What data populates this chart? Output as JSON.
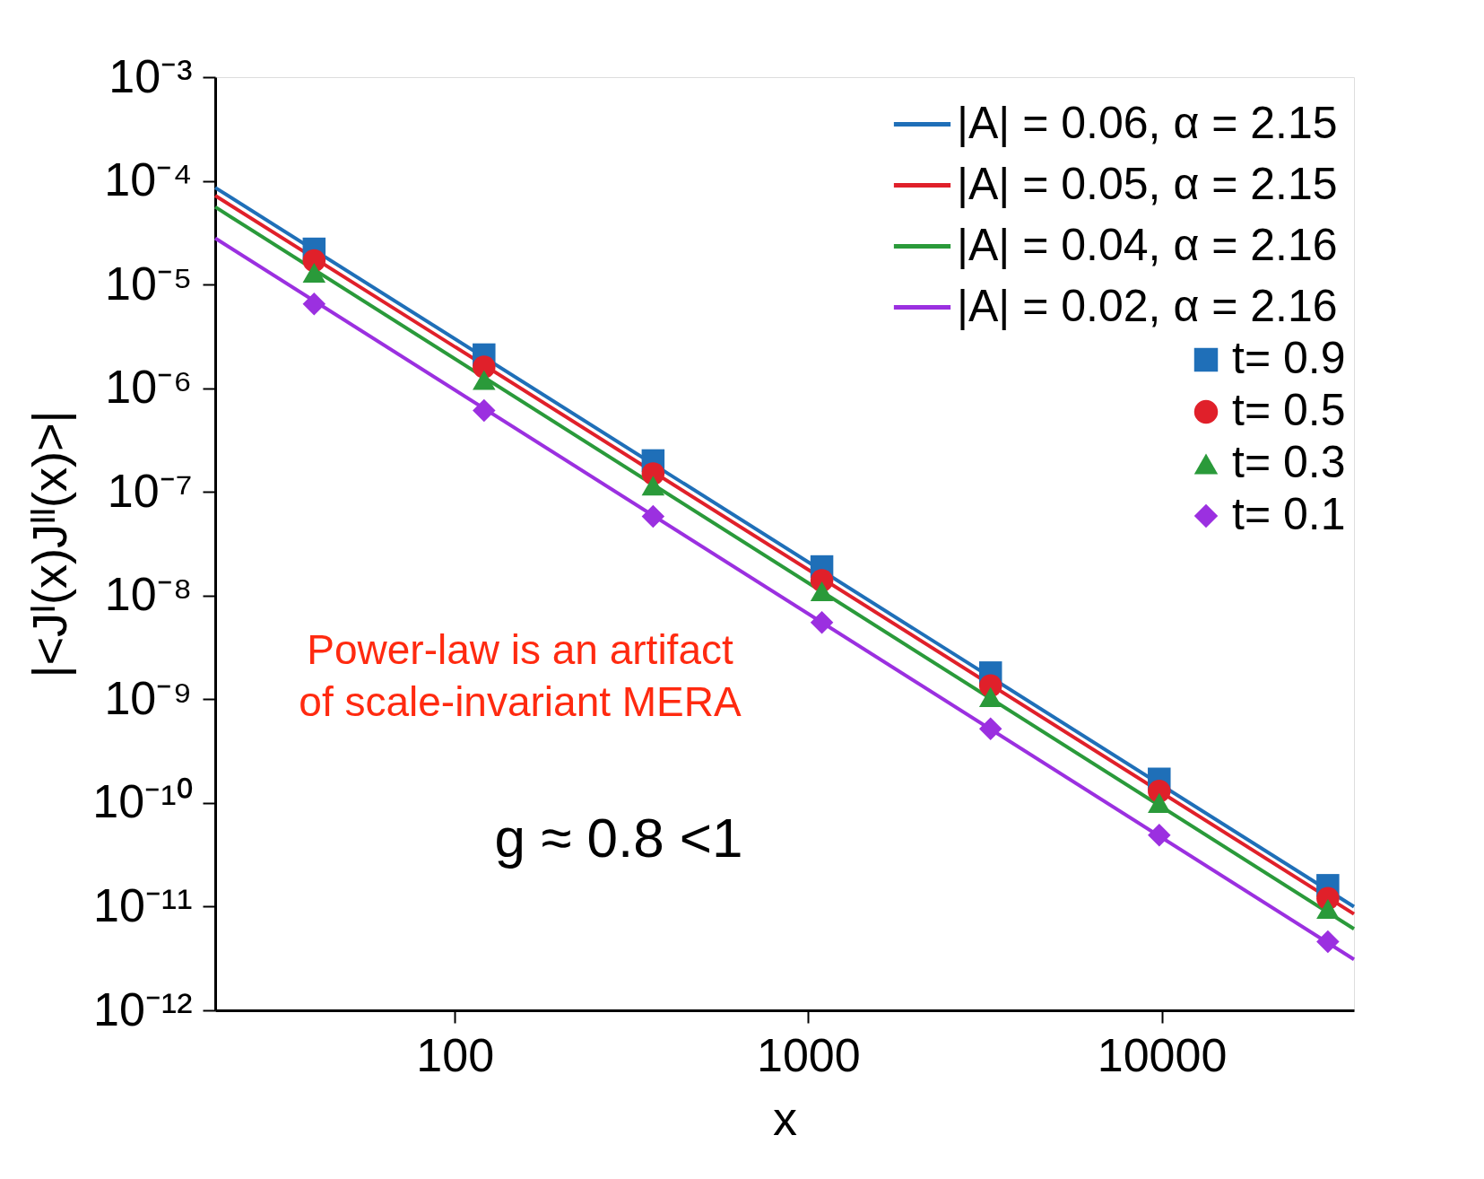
{
  "chart_data": {
    "type": "line",
    "xlabel": "x",
    "ylabel": "|<Jᴵ(x)Jᴵᴵ(x)>|",
    "log": "xy",
    "grid": false,
    "legend": "top right",
    "xlim": [
      21,
      35000
    ],
    "xticks": [
      100,
      1000,
      10000
    ],
    "ylim": [
      1e-12,
      0.001
    ],
    "yticks": [
      {
        "value": 1e-12,
        "label": "10⁻¹²"
      },
      {
        "value": 1e-11,
        "label": "10⁻¹¹"
      },
      {
        "value": 1e-10,
        "label": "10⁻¹⁰"
      },
      {
        "value": 1e-09,
        "label": "10⁻⁹"
      },
      {
        "value": 1e-08,
        "label": "10⁻⁸"
      },
      {
        "value": 1e-07,
        "label": "10⁻⁷"
      },
      {
        "value": 1e-06,
        "label": "10⁻⁶"
      },
      {
        "value": 1e-05,
        "label": "10⁻⁵"
      },
      {
        "value": 0.0001,
        "label": "10⁻⁴"
      },
      {
        "value": 0.001,
        "label": "10⁻³"
      }
    ],
    "annotations": [
      "Power-law is an artifact\nof scale-invariant MERA",
      "g ≈ 0.8 <1"
    ],
    "series": [
      {
        "name": "|A| = 0.06, α = 2.15",
        "color": "#1f6fb8",
        "x": [
          21,
          35000
        ],
        "values": [
          8.6e-05,
          1e-11
        ]
      },
      {
        "name": "|A| = 0.05, α = 2.15",
        "color": "#e0202a",
        "x": [
          21,
          35000
        ],
        "values": [
          7.2e-05,
          8.5e-12
        ]
      },
      {
        "name": "|A| = 0.04, α = 2.16",
        "color": "#2a9a3a",
        "x": [
          21,
          35000
        ],
        "values": [
          5.6e-05,
          6.1e-12
        ]
      },
      {
        "name": "|A| = 0.02, α = 2.16",
        "color": "#9b30e0",
        "x": [
          21,
          35000
        ],
        "values": [
          2.8e-05,
          3.1e-12
        ]
      },
      {
        "type": "scatter",
        "name": "t= 0.9",
        "color": "#1f6fb8",
        "marker": "square",
        "x": [
          40,
          121,
          364,
          1093,
          3280,
          9841,
          29524
        ],
        "values": [
          2.2e-05,
          2.1e-06,
          2e-07,
          1.9e-08,
          1.8e-09,
          1.7e-10,
          1.6e-11
        ]
      },
      {
        "type": "scatter",
        "name": "t= 0.5",
        "color": "#e0202a",
        "marker": "circle",
        "x": [
          40,
          121,
          364,
          1093,
          3280,
          9841,
          29524
        ],
        "values": [
          1.7e-05,
          1.6e-06,
          1.5e-07,
          1.4e-08,
          1.35e-09,
          1.3e-10,
          1.2e-11
        ]
      },
      {
        "type": "scatter",
        "name": "t= 0.3",
        "color": "#2a9a3a",
        "marker": "triangle",
        "x": [
          40,
          121,
          364,
          1093,
          3280,
          9841,
          29524
        ],
        "values": [
          1.3e-05,
          1.2e-06,
          1.15e-07,
          1.1e-08,
          1.05e-09,
          1e-10,
          9.5e-12
        ]
      },
      {
        "type": "scatter",
        "name": "t= 0.1",
        "color": "#9b30e0",
        "marker": "diamond",
        "x": [
          40,
          121,
          364,
          1093,
          3280,
          9841,
          29524
        ],
        "values": [
          6.5e-06,
          6.1e-07,
          5.8e-08,
          5.5e-09,
          5.2e-10,
          4.9e-11,
          4.6e-12
        ]
      }
    ]
  }
}
